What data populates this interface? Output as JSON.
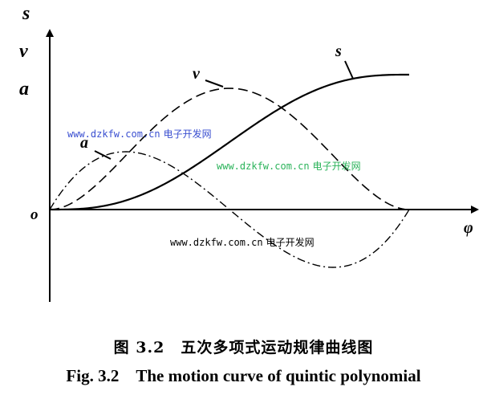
{
  "axes": {
    "y_labels": [
      "s",
      "v",
      "a"
    ],
    "origin": "o",
    "x_label": "φ"
  },
  "curves": {
    "s": "s",
    "v": "v",
    "a": "a"
  },
  "watermarks": [
    {
      "site": "www.dzkfw.com.cn",
      "name": "电子开发网"
    },
    {
      "site": "www.dzkfw.com.cn",
      "name": "电子开发网"
    },
    {
      "site": "www.dzkfw.com.cn",
      "name": "电子开发网"
    }
  ],
  "caption": {
    "chinese": "图 3.2　五次多项式运动规律曲线图",
    "english": "Fig. 3.2　The motion curve of quintic polynomial"
  }
}
